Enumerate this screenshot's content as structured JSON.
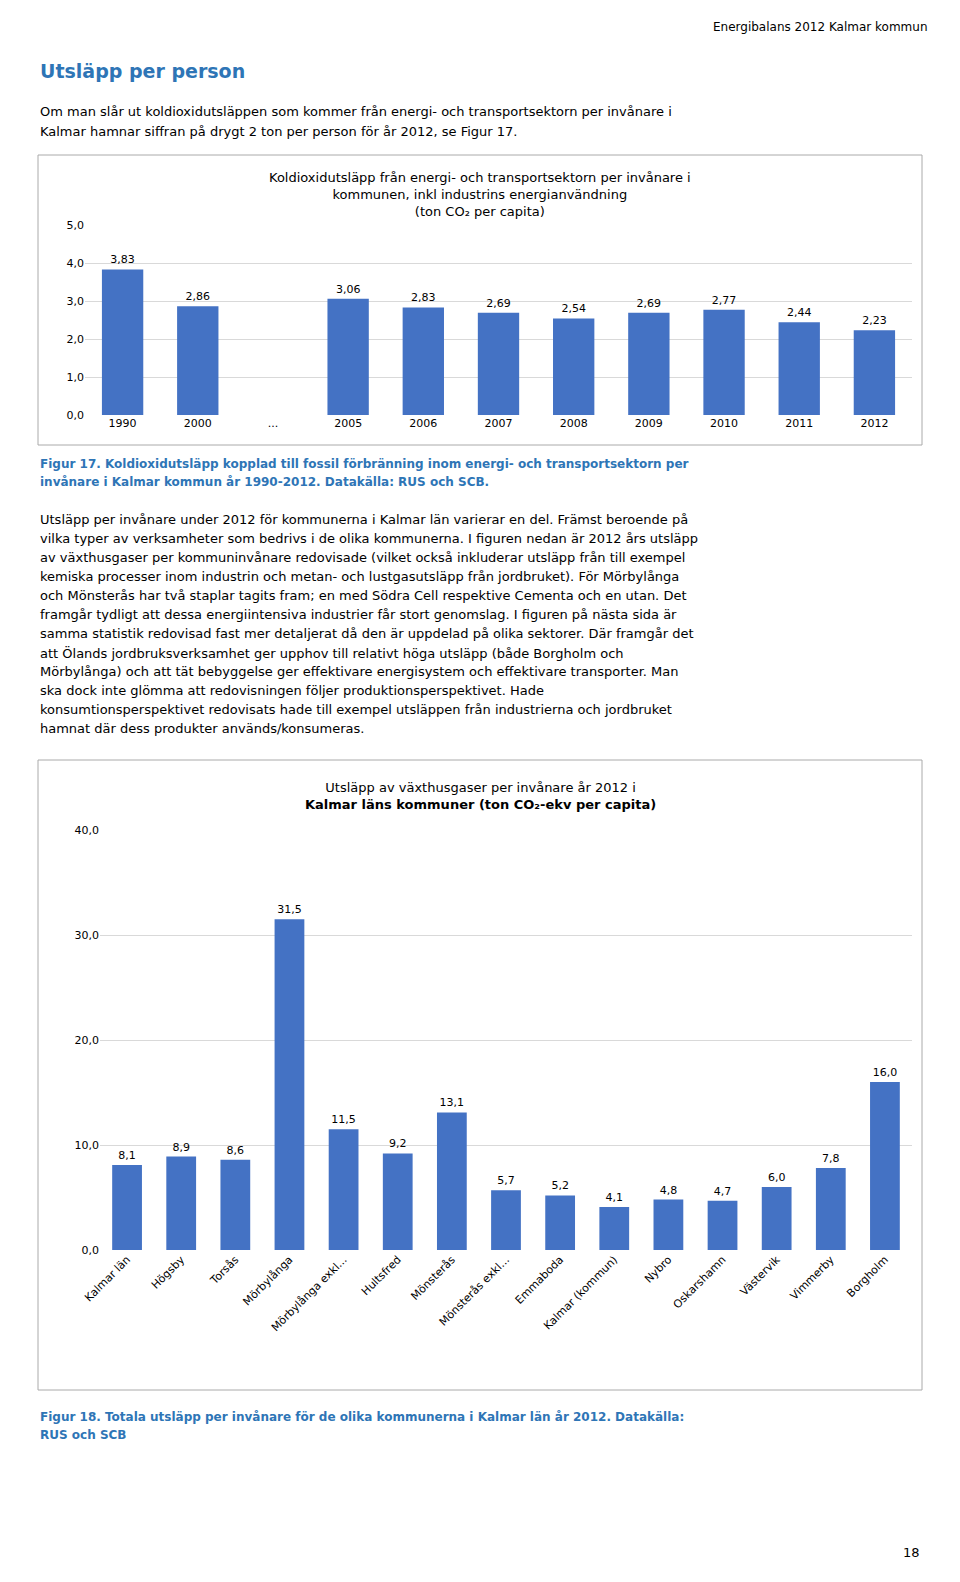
{
  "chart_data": [
    {
      "type": "bar",
      "title": [
        "Koldioxidutsläpp från energi- och transportsektorn per invånare i",
        "kommunen, inkl industrins energianvändning",
        "(ton CO₂ per capita)"
      ],
      "annotations": [
        {
          "text": "Energibalans 2012 Kalmar kommun"
        },
        {
          "text": "Utsläpp per person",
          "color": "#2E75B6"
        },
        {
          "text": "Om man slår ut koldioxidutsläppen som kommer från energi- och transportsektorn per invånare i"
        },
        {
          "text": "Kalmar hamnar siffran på drygt 2 ton per person för år 2012, se Figur 17."
        },
        {
          "text": "Figur 17. Koldioxidutsläpp kopplad till fossil förbränning inom energi- och transportsektorn per",
          "color": "#2E75B6"
        },
        {
          "text": "invånare i Kalmar kommun år 1990-2012. Datakälla: RUS och SCB.",
          "color": "#2E75B6"
        }
      ],
      "categories": [
        "1990",
        "2000",
        "...",
        "2005",
        "2006",
        "2007",
        "2008",
        "2009",
        "2010",
        "2011",
        "2012"
      ],
      "values": [
        3.83,
        2.86,
        null,
        3.06,
        2.83,
        2.69,
        2.54,
        2.69,
        2.77,
        2.44,
        2.23
      ],
      "value_labels": [
        "3,83",
        "2,86",
        null,
        "3,06",
        "2,83",
        "2,69",
        "2,54",
        "2,69",
        "2,77",
        "2,44",
        "2,23"
      ],
      "color": "#4472C4",
      "ylim": [
        0,
        5.0
      ],
      "yticks": [
        {
          "value": 0.0,
          "label": "0,0"
        },
        {
          "value": 1.0,
          "label": "1,0"
        },
        {
          "value": 2.0,
          "label": "2,0"
        },
        {
          "value": 3.0,
          "label": "3,0"
        },
        {
          "value": 4.0,
          "label": "4,0"
        },
        {
          "value": 5.0,
          "label": "5,0"
        }
      ],
      "grid": true,
      "data_labels": true
    },
    {
      "type": "bar",
      "title": [
        "Utsläpp av växthusgaser per invånare år 2012 i",
        "Kalmar läns kommuner (ton CO₂-ekv per capita)"
      ],
      "annotations": [
        {
          "text": "Utsläpp per invånare under 2012 för kommunerna i Kalmar län varierar en del. Främst beroende på"
        },
        {
          "text": "vilka typer av verksamheter som bedrivs i de olika kommunerna. I figuren nedan är 2012 års utsläpp"
        },
        {
          "text": "av växthusgaser per kommuninvånare redovisade (vilket också inkluderar utsläpp från till exempel"
        },
        {
          "text": "kemiska processer inom industrin och metan- och lustgasutsläpp från jordbruket). För Mörbylånga"
        },
        {
          "text": "och Mönsterås har två staplar tagits fram; en med Södra Cell respektive Cementa och en utan. Det"
        },
        {
          "text": "framgår tydligt att dessa energiintensiva industrier får stort genomslag. I figuren på nästa sida är"
        },
        {
          "text": "samma statistik redovisad fast mer detaljerat då den är uppdelad på olika sektorer. Där framgår det"
        },
        {
          "text": "att Ölands jordbruksverksamhet ger upphov till relativt höga utsläpp (både Borgholm och"
        },
        {
          "text": "Mörbylånga) och att tät bebyggelse ger effektivare energisystem och effektivare transporter. Man"
        },
        {
          "text": "ska dock inte glömma att redovisningen följer produktionsperspektivet. Hade"
        },
        {
          "text": "konsumtionsperspektivet redovisats hade till exempel utsläppen från industrierna och jordbruket"
        },
        {
          "text": "hamnat där dess produkter används/konsumeras."
        },
        {
          "text": "Figur 18. Totala utsläpp per invånare för de olika kommunerna i Kalmar län år 2012. Datakälla:",
          "color": "#2E75B6"
        },
        {
          "text": "RUS och SCB",
          "color": "#2E75B6"
        },
        {
          "text": "18"
        }
      ],
      "categories": [
        "Kalmar län",
        "Högsby",
        "Torsås",
        "Mörbylånga",
        "Mörbylånga exkl...",
        "Hultsfred",
        "Mönsterås",
        "Mönsterås exkl...",
        "Emmaboda",
        "Kalmar (kommun)",
        "Nybro",
        "Oskarshamn",
        "Västervik",
        "Vimmerby",
        "Borgholm"
      ],
      "values": [
        8.1,
        8.9,
        8.6,
        31.5,
        11.5,
        9.2,
        13.1,
        5.7,
        5.2,
        4.1,
        4.8,
        4.7,
        6.0,
        7.8,
        16.0
      ],
      "value_labels": [
        "8,1",
        "8,9",
        "8,6",
        "31,5",
        "11,5",
        "9,2",
        "13,1",
        "5,7",
        "5,2",
        "4,1",
        "4,8",
        "4,7",
        "6,0",
        "7,8",
        "16,0"
      ],
      "color": "#4472C4",
      "ylim": [
        0,
        40.0
      ],
      "yticks": [
        {
          "value": 0.0,
          "label": "0,0"
        },
        {
          "value": 10.0,
          "label": "10,0"
        },
        {
          "value": 20.0,
          "label": "20,0"
        },
        {
          "value": 30.0,
          "label": "30,0"
        },
        {
          "value": 40.0,
          "label": "40,0"
        }
      ],
      "grid": true,
      "data_labels": true
    }
  ]
}
